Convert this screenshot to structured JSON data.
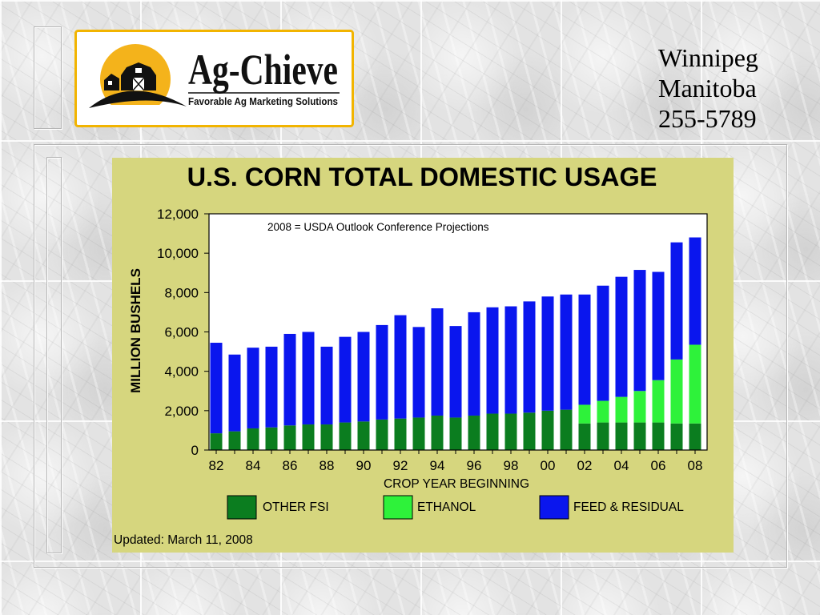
{
  "slide": {
    "logo": {
      "name": "Ag-Chieve",
      "tagline": "Favorable Ag Marketing Solutions",
      "icon": "barn-sun-logo"
    },
    "contact": {
      "city": "Winnipeg",
      "province": "Manitoba",
      "phone": "255-5789"
    }
  },
  "colors": {
    "chart_background": "#d6d67e",
    "plot_background": "#ffffff",
    "logo_accent": "#f4b31b"
  },
  "chart_data": {
    "type": "bar",
    "stacked": true,
    "title": "U.S. CORN TOTAL DOMESTIC USAGE",
    "annotation": "2008 = USDA Outlook Conference Projections",
    "xlabel": "CROP YEAR BEGINNING",
    "ylabel": "MILLION BUSHELS",
    "categories": [
      "82",
      "83",
      "84",
      "85",
      "86",
      "87",
      "88",
      "89",
      "90",
      "91",
      "92",
      "93",
      "94",
      "95",
      "96",
      "97",
      "98",
      "99",
      "00",
      "01",
      "02",
      "03",
      "04",
      "05",
      "06",
      "07",
      "08"
    ],
    "xtick_labels": [
      "82",
      "84",
      "86",
      "88",
      "90",
      "92",
      "94",
      "96",
      "98",
      "00",
      "02",
      "04",
      "06",
      "08"
    ],
    "yticks": [
      0,
      2000,
      4000,
      6000,
      8000,
      10000,
      12000
    ],
    "ytick_labels": [
      "0",
      "2,000",
      "4,000",
      "6,000",
      "8,000",
      "10,000",
      "12,000"
    ],
    "ylim": [
      0,
      12000
    ],
    "grid": false,
    "legend": "bottom",
    "series": [
      {
        "name": "OTHER FSI",
        "color": "#0b7d1f",
        "values": [
          850,
          950,
          1100,
          1150,
          1250,
          1300,
          1300,
          1400,
          1450,
          1550,
          1600,
          1650,
          1750,
          1650,
          1750,
          1850,
          1850,
          1900,
          2000,
          2050,
          1350,
          1400,
          1400,
          1400,
          1400,
          1350,
          1350
        ]
      },
      {
        "name": "ETHANOL",
        "color": "#2ef23a",
        "values": [
          0,
          0,
          0,
          0,
          0,
          0,
          0,
          0,
          0,
          0,
          0,
          0,
          0,
          0,
          0,
          0,
          0,
          0,
          0,
          0,
          950,
          1100,
          1300,
          1600,
          2150,
          3250,
          4000
        ]
      },
      {
        "name": "FEED & RESIDUAL",
        "color": "#0a16ee",
        "values": [
          4600,
          3900,
          4100,
          4100,
          4650,
          4700,
          3950,
          4350,
          4550,
          4800,
          5250,
          4600,
          5450,
          4650,
          5250,
          5400,
          5450,
          5650,
          5800,
          5850,
          5600,
          5850,
          6100,
          6150,
          5500,
          5950,
          5450
        ]
      }
    ],
    "footnote": "Updated: March 11, 2008"
  }
}
